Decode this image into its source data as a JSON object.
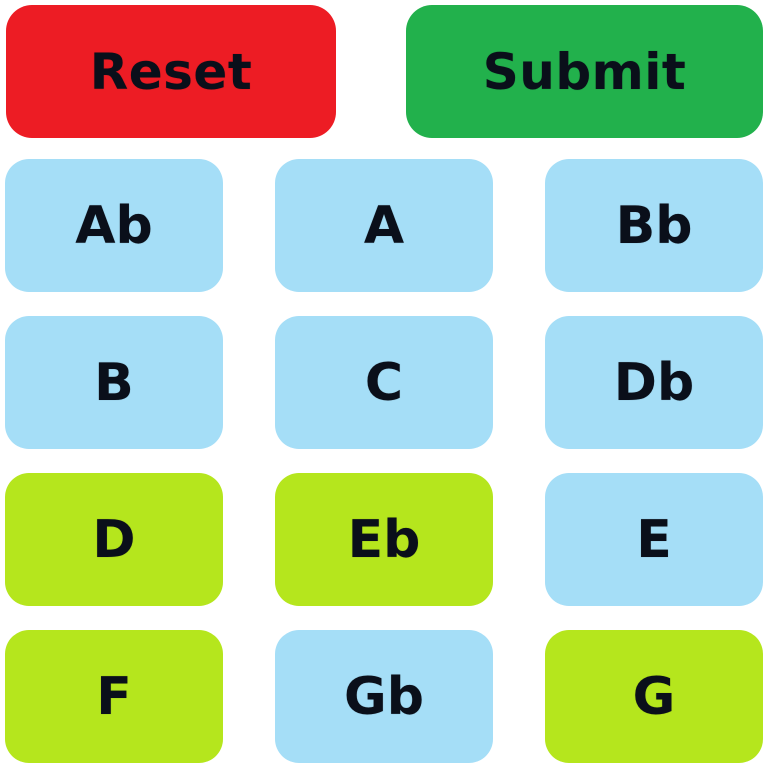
{
  "colors": {
    "reset": "#ed1c24",
    "submit": "#22b14c",
    "unselected": "#a5def7",
    "selected": "#b5e61d",
    "text": "#0a0f1a"
  },
  "actions": {
    "reset_label": "Reset",
    "submit_label": "Submit"
  },
  "notes": [
    {
      "label": "Ab",
      "selected": false
    },
    {
      "label": "A",
      "selected": false
    },
    {
      "label": "Bb",
      "selected": false
    },
    {
      "label": "B",
      "selected": false
    },
    {
      "label": "C",
      "selected": false
    },
    {
      "label": "Db",
      "selected": false
    },
    {
      "label": "D",
      "selected": true
    },
    {
      "label": "Eb",
      "selected": true
    },
    {
      "label": "E",
      "selected": false
    },
    {
      "label": "F",
      "selected": true
    },
    {
      "label": "Gb",
      "selected": false
    },
    {
      "label": "G",
      "selected": true
    }
  ]
}
